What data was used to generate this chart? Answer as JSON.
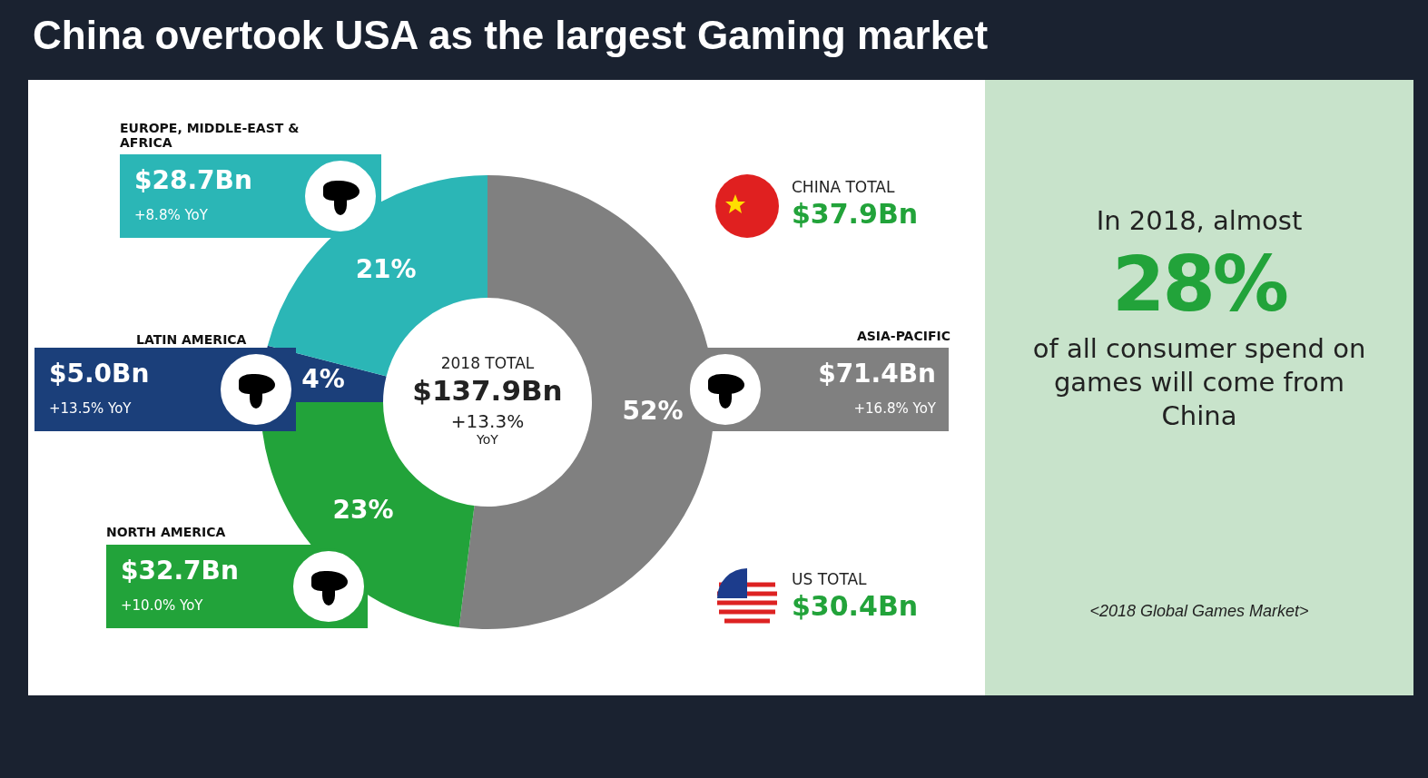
{
  "chart_data": {
    "type": "donut",
    "title": "China overtook USA as the largest Gaming market",
    "categories": [
      "ASIA-PACIFIC",
      "NORTH AMERICA",
      "LATIN AMERICA",
      "EUROPE, MIDDLE-EAST & AFRICA"
    ],
    "values": [
      52,
      23,
      4,
      21
    ],
    "colors": [
      "#808080",
      "#22a33a",
      "#1b3f7a",
      "#2bb6b6"
    ],
    "value_labels": [
      "52%",
      "23%",
      "4%",
      "21%"
    ],
    "legend": false,
    "annotations": [
      "$71.4Bn",
      "+16.8% YoY",
      "$32.7Bn",
      "+10.0% YoY",
      "$5.0Bn",
      "+13.5% YoY",
      "$28.7Bn",
      "+8.8% YoY",
      "2018 TOTAL",
      "$137.9Bn",
      "+13.3%",
      "YoY",
      "CHINA TOTAL",
      "$37.9Bn",
      "US TOTAL",
      "$30.4Bn",
      "In 2018, almost",
      "28%",
      "of all consumer spend on games will come from China",
      "<2018 Global Games Market>"
    ]
  }
}
